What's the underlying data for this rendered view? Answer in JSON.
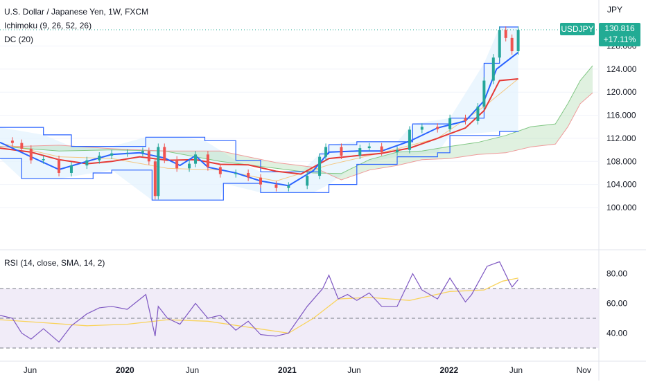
{
  "header": {
    "title": "U.S. Dollar / Japanese Yen, 1W, FXCM",
    "ichimoku_label": "Ichimoku (9, 26, 52, 26)",
    "dc_label": "DC (20)",
    "axis_unit": "JPY"
  },
  "last_price": {
    "symbol": "USDJPY",
    "price": "130.816",
    "change": "+17.11%"
  },
  "rsi": {
    "label": "RSI (14, close, SMA, 14, 2)",
    "upper_band": 70,
    "middle": 50,
    "lower_band": 30
  },
  "colors": {
    "up": "#26a69a",
    "down": "#ef5350",
    "conversion_line": "#2962ff",
    "base_line": "#e53935",
    "donchian": "#2962ff",
    "donchian_fill": "#e3f2fd",
    "cloud_bull": "#a5d6a7",
    "cloud_bear": "#ef9a9a",
    "rsi_line": "#7e57c2",
    "rsi_ma": "#f9d35b",
    "rsi_band_fill": "#ede7f6",
    "badge": "#22ab94"
  },
  "chart_data": [
    {
      "type": "candlestick",
      "title": "U.S. Dollar / Japanese Yen, 1W, FXCM",
      "ylabel": "JPY",
      "ylim": [
        98,
        132
      ],
      "y_ticks": [
        100,
        104,
        108,
        112,
        116,
        120,
        124,
        128
      ],
      "y_tick_labels": [
        "100.000",
        "104.000",
        "108.000",
        "112.000",
        "116.000",
        "120.000",
        "124.000",
        "128.000"
      ],
      "x_range": [
        "2019-03-25",
        "2022-12-05"
      ],
      "x_ticks": [
        {
          "date": "2019-06-01",
          "label": "Jun"
        },
        {
          "date": "2020-01-01",
          "label": "2020"
        },
        {
          "date": "2020-06-01",
          "label": "Jun"
        },
        {
          "date": "2021-01-01",
          "label": "2021"
        },
        {
          "date": "2021-06-01",
          "label": "Jun"
        },
        {
          "date": "2022-01-01",
          "label": "2022"
        },
        {
          "date": "2022-06-01",
          "label": "Jun"
        },
        {
          "date": "2022-11-01",
          "label": "Nov"
        }
      ],
      "last_value": 130.816,
      "close_series": [
        [
          "2019-03-25",
          111.6
        ],
        [
          "2019-04-22",
          111.2
        ],
        [
          "2019-05-13",
          110.2
        ],
        [
          "2019-06-03",
          108.2
        ],
        [
          "2019-07-01",
          108.4
        ],
        [
          "2019-08-05",
          106.0
        ],
        [
          "2019-09-02",
          107.3
        ],
        [
          "2019-10-07",
          108.2
        ],
        [
          "2019-11-04",
          109.0
        ],
        [
          "2019-12-02",
          109.4
        ],
        [
          "2020-01-06",
          109.5
        ],
        [
          "2020-02-10",
          109.8
        ],
        [
          "2020-02-24",
          108.0
        ],
        [
          "2020-03-09",
          102.0
        ],
        [
          "2020-03-16",
          110.5
        ],
        [
          "2020-03-30",
          108.3
        ],
        [
          "2020-04-27",
          106.8
        ],
        [
          "2020-05-25",
          107.6
        ],
        [
          "2020-06-08",
          109.2
        ],
        [
          "2020-07-06",
          107.0
        ],
        [
          "2020-08-03",
          105.8
        ],
        [
          "2020-09-07",
          106.0
        ],
        [
          "2020-10-05",
          105.2
        ],
        [
          "2020-11-02",
          104.0
        ],
        [
          "2020-12-07",
          103.4
        ],
        [
          "2021-01-04",
          103.8
        ],
        [
          "2021-02-15",
          105.5
        ],
        [
          "2021-03-15",
          108.8
        ],
        [
          "2021-03-29",
          110.5
        ],
        [
          "2021-05-03",
          109.0
        ],
        [
          "2021-06-14",
          110.3
        ],
        [
          "2021-07-05",
          110.6
        ],
        [
          "2021-08-02",
          109.6
        ],
        [
          "2021-09-06",
          110.0
        ],
        [
          "2021-10-04",
          113.5
        ],
        [
          "2021-11-01",
          114.0
        ],
        [
          "2021-12-06",
          113.6
        ],
        [
          "2022-01-03",
          115.5
        ],
        [
          "2022-02-07",
          115.0
        ],
        [
          "2022-03-07",
          117.5
        ],
        [
          "2022-03-21",
          122.0
        ],
        [
          "2022-04-11",
          126.0
        ],
        [
          "2022-04-25",
          130.8
        ],
        [
          "2022-05-09",
          129.4
        ],
        [
          "2022-05-23",
          127.1
        ],
        [
          "2022-06-06",
          130.8
        ]
      ],
      "ichimoku": {
        "conversion_line": [
          [
            "2019-03-25",
            111.3
          ],
          [
            "2019-06-03",
            108.8
          ],
          [
            "2019-08-05",
            106.6
          ],
          [
            "2019-10-07",
            108.0
          ],
          [
            "2019-12-02",
            109.2
          ],
          [
            "2020-02-03",
            109.5
          ],
          [
            "2020-03-30",
            108.6
          ],
          [
            "2020-05-04",
            107.3
          ],
          [
            "2020-06-08",
            109.0
          ],
          [
            "2020-07-06",
            107.0
          ],
          [
            "2020-09-07",
            106.0
          ],
          [
            "2020-11-02",
            104.6
          ],
          [
            "2021-01-04",
            103.8
          ],
          [
            "2021-03-01",
            106.4
          ],
          [
            "2021-04-05",
            109.6
          ],
          [
            "2021-06-07",
            109.8
          ],
          [
            "2021-08-02",
            109.8
          ],
          [
            "2021-10-04",
            111.5
          ],
          [
            "2021-12-06",
            113.8
          ],
          [
            "2022-02-07",
            115.0
          ],
          [
            "2022-03-21",
            118.5
          ],
          [
            "2022-04-18",
            124.0
          ],
          [
            "2022-06-06",
            126.9
          ]
        ],
        "base_line": [
          [
            "2019-03-25",
            110.3
          ],
          [
            "2019-06-03",
            109.6
          ],
          [
            "2019-08-05",
            108.3
          ],
          [
            "2019-10-07",
            107.6
          ],
          [
            "2019-12-02",
            108.0
          ],
          [
            "2020-02-03",
            108.8
          ],
          [
            "2020-04-06",
            108.2
          ],
          [
            "2020-06-08",
            108.3
          ],
          [
            "2020-08-03",
            107.5
          ],
          [
            "2020-10-05",
            107.4
          ],
          [
            "2020-12-07",
            106.3
          ],
          [
            "2021-02-01",
            105.8
          ],
          [
            "2021-04-05",
            108.5
          ],
          [
            "2021-06-07",
            109.0
          ],
          [
            "2021-08-02",
            109.4
          ],
          [
            "2021-10-04",
            110.3
          ],
          [
            "2021-12-06",
            112.0
          ],
          [
            "2022-02-07",
            113.8
          ],
          [
            "2022-03-21",
            116.8
          ],
          [
            "2022-04-25",
            122.0
          ],
          [
            "2022-06-06",
            122.3
          ]
        ],
        "leading_span_a": [
          [
            "2019-03-25",
            110.6
          ],
          [
            "2019-08-05",
            109.8
          ],
          [
            "2019-12-02",
            110.0
          ],
          [
            "2020-03-30",
            109.8
          ],
          [
            "2020-08-03",
            108.0
          ],
          [
            "2020-12-07",
            106.8
          ],
          [
            "2021-03-01",
            106.0
          ],
          [
            "2021-05-03",
            105.9
          ],
          [
            "2021-07-05",
            108.3
          ],
          [
            "2021-09-06",
            109.6
          ],
          [
            "2021-11-01",
            109.8
          ],
          [
            "2022-01-03",
            110.6
          ],
          [
            "2022-03-07",
            111.3
          ],
          [
            "2022-05-09",
            112.5
          ],
          [
            "2022-07-04",
            114.0
          ],
          [
            "2022-08-29",
            114.5
          ],
          [
            "2022-09-26",
            118.0
          ],
          [
            "2022-10-24",
            122.0
          ],
          [
            "2022-11-21",
            124.6
          ]
        ],
        "leading_span_b": [
          [
            "2019-03-25",
            110.5
          ],
          [
            "2019-08-05",
            110.8
          ],
          [
            "2019-12-02",
            110.2
          ],
          [
            "2020-03-30",
            109.8
          ],
          [
            "2020-08-03",
            109.8
          ],
          [
            "2020-12-07",
            107.8
          ],
          [
            "2021-03-01",
            107.0
          ],
          [
            "2021-05-03",
            104.8
          ],
          [
            "2021-07-05",
            106.5
          ],
          [
            "2021-09-06",
            107.3
          ],
          [
            "2021-11-01",
            108.3
          ],
          [
            "2022-01-03",
            108.5
          ],
          [
            "2022-03-07",
            109.2
          ],
          [
            "2022-05-09",
            109.5
          ],
          [
            "2022-07-04",
            110.5
          ],
          [
            "2022-08-29",
            111.0
          ],
          [
            "2022-09-26",
            114.0
          ],
          [
            "2022-10-24",
            118.0
          ],
          [
            "2022-11-21",
            119.9
          ]
        ]
      },
      "donchian": {
        "upper": [
          [
            "2019-03-25",
            113.9
          ],
          [
            "2019-07-01",
            112.6
          ],
          [
            "2019-09-02",
            110.6
          ],
          [
            "2019-12-02",
            110.6
          ],
          [
            "2020-02-17",
            112.2
          ],
          [
            "2020-05-04",
            112.2
          ],
          [
            "2020-06-29",
            111.6
          ],
          [
            "2020-09-07",
            108.2
          ],
          [
            "2020-11-02",
            106.2
          ],
          [
            "2021-02-01",
            106.2
          ],
          [
            "2021-03-15",
            109.3
          ],
          [
            "2021-04-05",
            110.9
          ],
          [
            "2021-06-07",
            111.4
          ],
          [
            "2021-09-06",
            111.4
          ],
          [
            "2021-10-11",
            114.5
          ],
          [
            "2022-01-03",
            115.5
          ],
          [
            "2022-03-21",
            125.0
          ],
          [
            "2022-04-25",
            131.3
          ],
          [
            "2022-06-06",
            131.3
          ]
        ],
        "lower": [
          [
            "2019-03-25",
            108.5
          ],
          [
            "2019-05-13",
            105.0
          ],
          [
            "2019-08-05",
            105.0
          ],
          [
            "2019-10-21",
            106.0
          ],
          [
            "2019-12-02",
            106.5
          ],
          [
            "2020-03-02",
            101.3
          ],
          [
            "2020-08-03",
            101.3
          ],
          [
            "2020-08-10",
            104.2
          ],
          [
            "2020-11-02",
            102.6
          ],
          [
            "2021-03-01",
            102.6
          ],
          [
            "2021-04-05",
            104.0
          ],
          [
            "2021-06-07",
            107.5
          ],
          [
            "2021-09-06",
            108.8
          ],
          [
            "2021-12-06",
            109.5
          ],
          [
            "2022-01-03",
            112.5
          ],
          [
            "2022-04-25",
            113.2
          ],
          [
            "2022-06-06",
            113.3
          ]
        ],
        "basis": [
          [
            "2019-03-25",
            111.2
          ],
          [
            "2019-08-05",
            108.8
          ],
          [
            "2019-12-02",
            108.5
          ],
          [
            "2020-04-06",
            106.8
          ],
          [
            "2020-08-03",
            106.5
          ],
          [
            "2020-12-07",
            104.6
          ],
          [
            "2021-04-05",
            107.4
          ],
          [
            "2021-08-02",
            109.5
          ],
          [
            "2021-12-06",
            112.0
          ],
          [
            "2022-03-21",
            117.5
          ],
          [
            "2022-06-06",
            122.3
          ]
        ]
      }
    },
    {
      "type": "line",
      "title": "RSI (14, close, SMA, 14, 2)",
      "ylim": [
        25,
        90
      ],
      "y_ticks": [
        40,
        60,
        80
      ],
      "y_tick_labels": [
        "40.00",
        "60.00",
        "80.00"
      ],
      "reference_lines": [
        70,
        50,
        30
      ],
      "series": [
        {
          "values": [
            [
              "2019-03-25",
              52
            ],
            [
              "2019-04-22",
              50
            ],
            [
              "2019-05-13",
              40
            ],
            [
              "2019-06-03",
              36
            ],
            [
              "2019-07-01",
              43
            ],
            [
              "2019-08-05",
              34
            ],
            [
              "2019-09-02",
              45
            ],
            [
              "2019-10-07",
              53
            ],
            [
              "2019-11-04",
              57
            ],
            [
              "2019-12-02",
              58
            ],
            [
              "2020-01-06",
              56
            ],
            [
              "2020-02-17",
              66
            ],
            [
              "2020-03-09",
              38
            ],
            [
              "2020-03-16",
              58
            ],
            [
              "2020-04-06",
              50
            ],
            [
              "2020-05-04",
              46
            ],
            [
              "2020-06-08",
              60
            ],
            [
              "2020-07-06",
              50
            ],
            [
              "2020-08-03",
              52
            ],
            [
              "2020-09-07",
              42
            ],
            [
              "2020-10-05",
              48
            ],
            [
              "2020-11-02",
              39
            ],
            [
              "2020-12-07",
              38
            ],
            [
              "2021-01-04",
              40
            ],
            [
              "2021-02-15",
              58
            ],
            [
              "2021-03-22",
              70
            ],
            [
              "2021-04-05",
              79
            ],
            [
              "2021-04-26",
              63
            ],
            [
              "2021-05-17",
              66
            ],
            [
              "2021-06-07",
              62
            ],
            [
              "2021-07-05",
              67
            ],
            [
              "2021-08-02",
              58
            ],
            [
              "2021-09-06",
              58
            ],
            [
              "2021-10-11",
              80
            ],
            [
              "2021-11-01",
              69
            ],
            [
              "2021-12-06",
              63
            ],
            [
              "2022-01-03",
              77
            ],
            [
              "2022-02-07",
              61
            ],
            [
              "2022-02-21",
              66
            ],
            [
              "2022-03-28",
              85
            ],
            [
              "2022-04-25",
              88
            ],
            [
              "2022-05-16",
              75
            ],
            [
              "2022-05-23",
              71
            ],
            [
              "2022-06-06",
              76
            ]
          ]
        },
        {
          "values": [
            [
              "2019-03-25",
              49
            ],
            [
              "2019-07-01",
              47
            ],
            [
              "2019-10-07",
              45
            ],
            [
              "2020-01-06",
              46
            ],
            [
              "2020-04-06",
              49
            ],
            [
              "2020-07-06",
              48
            ],
            [
              "2020-10-05",
              44
            ],
            [
              "2021-01-04",
              40
            ],
            [
              "2021-03-01",
              50
            ],
            [
              "2021-04-26",
              63
            ],
            [
              "2021-07-05",
              64
            ],
            [
              "2021-10-04",
              62
            ],
            [
              "2022-01-03",
              68
            ],
            [
              "2022-03-21",
              69
            ],
            [
              "2022-05-02",
              75
            ],
            [
              "2022-06-06",
              77
            ]
          ]
        }
      ]
    }
  ]
}
